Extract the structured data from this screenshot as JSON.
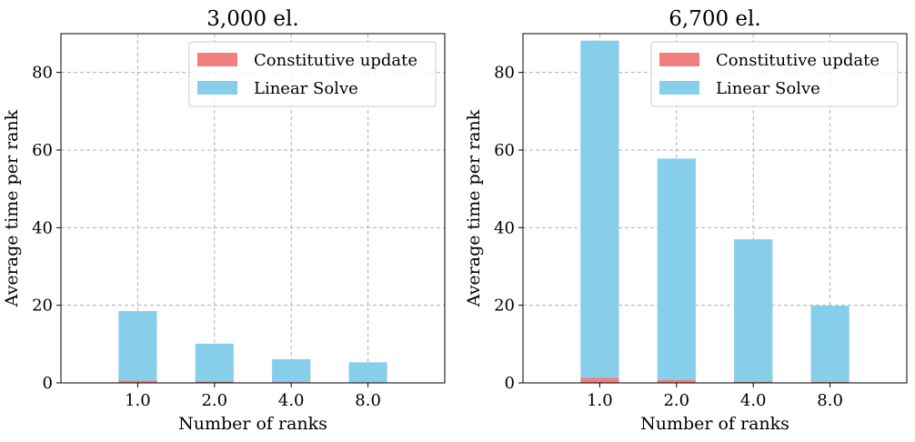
{
  "chart_data": [
    {
      "type": "bar",
      "stacked": true,
      "title": "3,000 el.",
      "xlabel": "Number of ranks",
      "ylabel": "Average time per rank",
      "categories": [
        "1.0",
        "2.0",
        "4.0",
        "8.0"
      ],
      "series": [
        {
          "name": "Constitutive update",
          "color": "#f08080",
          "values": [
            0.6,
            0.35,
            0.2,
            0.15
          ]
        },
        {
          "name": "Linear Solve",
          "color": "#87ceeb",
          "values": [
            17.9,
            9.75,
            5.9,
            5.15
          ]
        }
      ],
      "ylim": [
        0,
        90
      ],
      "yticks": [
        0,
        20,
        40,
        60,
        80
      ],
      "grid": true,
      "legend": "upper-right"
    },
    {
      "type": "bar",
      "stacked": true,
      "title": "6,700 el.",
      "xlabel": "Number of ranks",
      "ylabel": "Average time per rank",
      "categories": [
        "1.0",
        "2.0",
        "4.0",
        "8.0"
      ],
      "series": [
        {
          "name": "Constitutive update",
          "color": "#f08080",
          "values": [
            1.3,
            0.8,
            0.4,
            0.3
          ]
        },
        {
          "name": "Linear Solve",
          "color": "#87ceeb",
          "values": [
            86.9,
            57.0,
            36.6,
            19.6
          ]
        }
      ],
      "ylim": [
        0,
        90
      ],
      "yticks": [
        0,
        20,
        40,
        60,
        80
      ],
      "grid": true,
      "legend": "upper-right"
    }
  ]
}
